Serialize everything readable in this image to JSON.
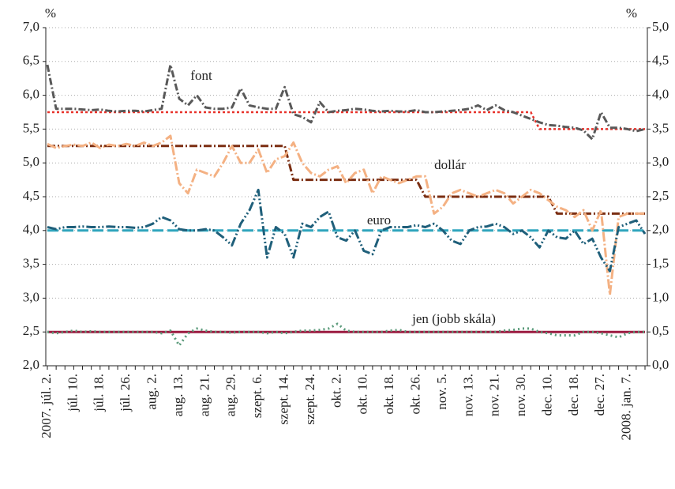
{
  "chart_data": {
    "type": "line",
    "y_unit": "%",
    "y2_unit": "%",
    "categories": [
      "2007. júl. 2.",
      null,
      null,
      "júl. 10.",
      null,
      null,
      "júl. 18.",
      null,
      null,
      "júl. 26.",
      null,
      null,
      "aug. 2.",
      null,
      null,
      "aug. 13.",
      null,
      null,
      "aug. 21.",
      null,
      null,
      "aug. 29.",
      null,
      null,
      "szept. 6.",
      null,
      null,
      "szept. 14.",
      null,
      null,
      "szept. 24.",
      null,
      null,
      "okt. 2.",
      null,
      null,
      "okt. 10.",
      null,
      null,
      "okt. 18.",
      null,
      null,
      "okt. 26.",
      null,
      null,
      "nov. 5.",
      null,
      null,
      "nov. 13.",
      null,
      null,
      "nov. 21.",
      null,
      null,
      "nov. 30.",
      null,
      null,
      "dec. 10.",
      null,
      null,
      "dec. 18.",
      null,
      null,
      "dec. 27.",
      null,
      null,
      "2008. jan. 7.",
      null,
      null
    ],
    "series": [
      {
        "name": "font",
        "color": "#595959",
        "values": [
          6.45,
          5.8,
          5.8,
          5.8,
          5.79,
          5.78,
          5.79,
          5.77,
          5.76,
          5.77,
          5.77,
          5.76,
          5.78,
          5.8,
          6.45,
          5.95,
          5.85,
          6.0,
          5.82,
          5.8,
          5.8,
          5.82,
          6.1,
          5.85,
          5.82,
          5.8,
          5.8,
          6.12,
          5.72,
          5.68,
          5.6,
          5.9,
          5.75,
          5.77,
          5.78,
          5.8,
          5.79,
          5.77,
          5.76,
          5.77,
          5.76,
          5.76,
          5.78,
          5.75,
          5.75,
          5.76,
          5.77,
          5.78,
          5.8,
          5.85,
          5.78,
          5.85,
          5.78,
          5.75,
          5.7,
          5.65,
          5.6,
          5.56,
          5.55,
          5.53,
          5.52,
          5.48,
          5.35,
          5.75,
          5.52,
          5.52,
          5.5,
          5.47,
          5.5
        ]
      },
      {
        "color": "#e8322b",
        "values": [
          5.75,
          5.75,
          5.75,
          5.75,
          5.75,
          5.75,
          5.75,
          5.75,
          5.75,
          5.75,
          5.75,
          5.75,
          5.75,
          5.75,
          5.75,
          5.75,
          5.75,
          5.75,
          5.75,
          5.75,
          5.75,
          5.75,
          5.75,
          5.75,
          5.75,
          5.75,
          5.75,
          5.75,
          5.75,
          5.75,
          5.75,
          5.75,
          5.75,
          5.75,
          5.75,
          5.75,
          5.75,
          5.75,
          5.75,
          5.75,
          5.75,
          5.75,
          5.75,
          5.75,
          5.75,
          5.75,
          5.75,
          5.75,
          5.75,
          5.75,
          5.75,
          5.75,
          5.75,
          5.75,
          5.75,
          5.75,
          5.5,
          5.5,
          5.5,
          5.5,
          5.5,
          5.5,
          5.5,
          5.5,
          5.5,
          5.5,
          5.5,
          5.5,
          5.5
        ]
      },
      {
        "name": "dollár",
        "color": "#f4b183",
        "values": [
          5.28,
          5.22,
          5.25,
          5.27,
          5.25,
          5.3,
          5.22,
          5.27,
          5.25,
          5.28,
          5.25,
          5.3,
          5.25,
          5.3,
          5.4,
          4.7,
          4.55,
          4.9,
          4.85,
          4.8,
          5.0,
          5.25,
          5.0,
          5.0,
          5.2,
          4.85,
          5.05,
          5.1,
          5.3,
          5.0,
          4.85,
          4.8,
          4.9,
          4.95,
          4.7,
          4.85,
          4.9,
          4.55,
          4.8,
          4.75,
          4.7,
          4.75,
          4.8,
          4.8,
          4.25,
          4.35,
          4.55,
          4.6,
          4.55,
          4.5,
          4.55,
          4.6,
          4.55,
          4.4,
          4.5,
          4.6,
          4.55,
          4.45,
          4.35,
          4.3,
          4.2,
          4.3,
          4.0,
          4.3,
          3.05,
          4.2,
          4.25,
          4.25,
          4.25
        ]
      },
      {
        "color": "#7b2e12",
        "values": [
          5.25,
          5.25,
          5.25,
          5.25,
          5.25,
          5.25,
          5.25,
          5.25,
          5.25,
          5.25,
          5.25,
          5.25,
          5.25,
          5.25,
          5.25,
          5.25,
          5.25,
          5.25,
          5.25,
          5.25,
          5.25,
          5.25,
          5.25,
          5.25,
          5.25,
          5.25,
          5.25,
          5.25,
          4.75,
          4.75,
          4.75,
          4.75,
          4.75,
          4.75,
          4.75,
          4.75,
          4.75,
          4.75,
          4.75,
          4.75,
          4.75,
          4.75,
          4.75,
          4.5,
          4.5,
          4.5,
          4.5,
          4.5,
          4.5,
          4.5,
          4.5,
          4.5,
          4.5,
          4.5,
          4.5,
          4.5,
          4.5,
          4.5,
          4.25,
          4.25,
          4.25,
          4.25,
          4.25,
          4.25,
          4.25,
          4.25,
          4.25,
          4.25,
          4.25
        ]
      },
      {
        "name": "euro",
        "color": "#1f5f7a",
        "values": [
          4.05,
          4.02,
          4.05,
          4.05,
          4.06,
          4.05,
          4.05,
          4.06,
          4.05,
          4.05,
          4.04,
          4.05,
          4.1,
          4.2,
          4.15,
          4.02,
          4.0,
          4.0,
          4.02,
          4.0,
          3.9,
          3.78,
          4.1,
          4.3,
          4.6,
          3.6,
          4.05,
          3.95,
          3.6,
          4.1,
          4.05,
          4.2,
          4.28,
          3.9,
          3.85,
          4.0,
          3.7,
          3.65,
          4.0,
          4.05,
          4.05,
          4.05,
          4.08,
          4.05,
          4.1,
          4.0,
          3.85,
          3.8,
          4.0,
          4.05,
          4.06,
          4.1,
          4.05,
          3.95,
          4.0,
          3.9,
          3.75,
          4.0,
          3.9,
          3.88,
          4.0,
          3.8,
          3.88,
          3.6,
          3.4,
          4.05,
          4.1,
          4.15,
          3.95
        ]
      },
      {
        "color": "#2fa5bd",
        "values": [
          4.0,
          4.0,
          4.0,
          4.0,
          4.0,
          4.0,
          4.0,
          4.0,
          4.0,
          4.0,
          4.0,
          4.0,
          4.0,
          4.0,
          4.0,
          4.0,
          4.0,
          4.0,
          4.0,
          4.0,
          4.0,
          4.0,
          4.0,
          4.0,
          4.0,
          4.0,
          4.0,
          4.0,
          4.0,
          4.0,
          4.0,
          4.0,
          4.0,
          4.0,
          4.0,
          4.0,
          4.0,
          4.0,
          4.0,
          4.0,
          4.0,
          4.0,
          4.0,
          4.0,
          4.0,
          4.0,
          4.0,
          4.0,
          4.0,
          4.0,
          4.0,
          4.0,
          4.0,
          4.0,
          4.0,
          4.0,
          4.0,
          4.0,
          4.0,
          4.0,
          4.0,
          4.0,
          4.0,
          4.0,
          4.0,
          4.0,
          4.0,
          4.0,
          4.0
        ]
      },
      {
        "name": "jen (jobb skála)",
        "color": "#5a9a7a",
        "axis": "y2",
        "values": [
          0.5,
          0.48,
          0.5,
          0.52,
          0.5,
          0.51,
          0.5,
          0.5,
          0.5,
          0.5,
          0.5,
          0.5,
          0.5,
          0.48,
          0.52,
          0.3,
          0.48,
          0.55,
          0.52,
          0.5,
          0.5,
          0.49,
          0.5,
          0.5,
          0.5,
          0.48,
          0.5,
          0.48,
          0.5,
          0.52,
          0.52,
          0.53,
          0.55,
          0.62,
          0.52,
          0.5,
          0.5,
          0.5,
          0.5,
          0.52,
          0.53,
          0.5,
          0.5,
          0.5,
          0.5,
          0.5,
          0.5,
          0.5,
          0.5,
          0.5,
          0.5,
          0.5,
          0.52,
          0.53,
          0.55,
          0.55,
          0.5,
          0.48,
          0.45,
          0.45,
          0.45,
          0.5,
          0.5,
          0.48,
          0.45,
          0.42,
          0.48,
          0.5,
          0.5
        ]
      },
      {
        "color": "#9b1b40",
        "axis": "y2",
        "values": [
          0.5,
          0.5,
          0.5,
          0.5,
          0.5,
          0.5,
          0.5,
          0.5,
          0.5,
          0.5,
          0.5,
          0.5,
          0.5,
          0.5,
          0.5,
          0.5,
          0.5,
          0.5,
          0.5,
          0.5,
          0.5,
          0.5,
          0.5,
          0.5,
          0.5,
          0.5,
          0.5,
          0.5,
          0.5,
          0.5,
          0.5,
          0.5,
          0.5,
          0.5,
          0.5,
          0.5,
          0.5,
          0.5,
          0.5,
          0.5,
          0.5,
          0.5,
          0.5,
          0.5,
          0.5,
          0.5,
          0.5,
          0.5,
          0.5,
          0.5,
          0.5,
          0.5,
          0.5,
          0.5,
          0.5,
          0.5,
          0.5,
          0.5,
          0.5,
          0.5,
          0.5,
          0.5,
          0.5,
          0.5,
          0.5,
          0.5,
          0.5,
          0.5,
          0.5
        ]
      }
    ],
    "ylim": [
      2.0,
      7.0
    ],
    "yticks": [
      {
        "value": 2.0,
        "label": "2,0"
      },
      {
        "value": 2.5,
        "label": "2,5"
      },
      {
        "value": 3.0,
        "label": "3,0"
      },
      {
        "value": 3.5,
        "label": "3,5"
      },
      {
        "value": 4.0,
        "label": "4,0"
      },
      {
        "value": 4.5,
        "label": "4,5"
      },
      {
        "value": 5.0,
        "label": "5,0"
      },
      {
        "value": 5.5,
        "label": "5,5"
      },
      {
        "value": 6.0,
        "label": "6,0"
      },
      {
        "value": 6.5,
        "label": "6,5"
      },
      {
        "value": 7.0,
        "label": "7,0"
      }
    ],
    "y2lim": [
      0.0,
      5.0
    ],
    "y2ticks": [
      {
        "value": 0.0,
        "label": "0,0"
      },
      {
        "value": 0.5,
        "label": "0,5"
      },
      {
        "value": 1.0,
        "label": "1,0"
      },
      {
        "value": 1.5,
        "label": "1,5"
      },
      {
        "value": 2.0,
        "label": "2,0"
      },
      {
        "value": 2.5,
        "label": "2,5"
      },
      {
        "value": 3.0,
        "label": "3,0"
      },
      {
        "value": 3.5,
        "label": "3,5"
      },
      {
        "value": 4.0,
        "label": "4,0"
      },
      {
        "value": 4.5,
        "label": "4,5"
      },
      {
        "value": 5.0,
        "label": "5,0"
      }
    ],
    "grid": true
  }
}
